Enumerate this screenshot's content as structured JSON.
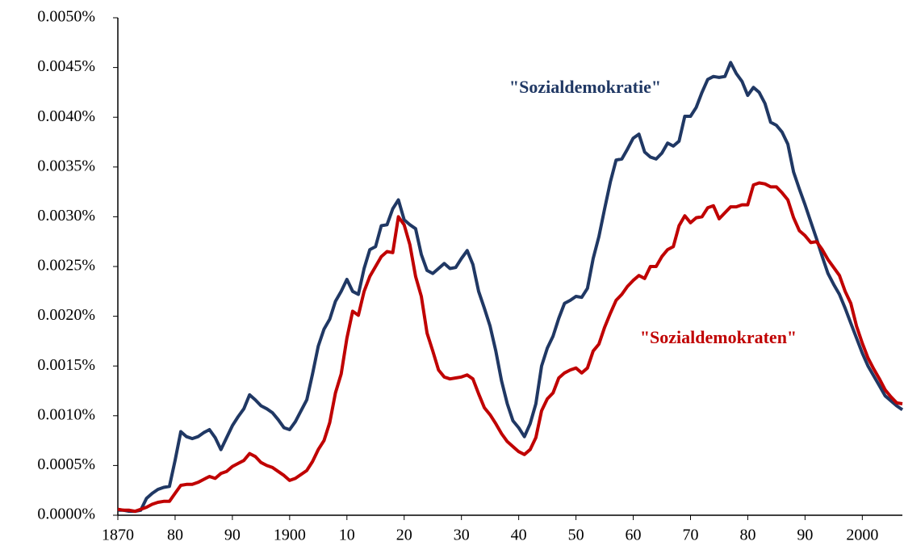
{
  "chart_data": {
    "type": "line",
    "x": [
      1870,
      1871,
      1872,
      1873,
      1874,
      1875,
      1876,
      1877,
      1878,
      1879,
      1880,
      1881,
      1882,
      1883,
      1884,
      1885,
      1886,
      1887,
      1888,
      1889,
      1890,
      1891,
      1892,
      1893,
      1894,
      1895,
      1896,
      1897,
      1898,
      1899,
      1900,
      1901,
      1902,
      1903,
      1904,
      1905,
      1906,
      1907,
      1908,
      1909,
      1910,
      1911,
      1912,
      1913,
      1914,
      1915,
      1916,
      1917,
      1918,
      1919,
      1920,
      1921,
      1922,
      1923,
      1924,
      1925,
      1926,
      1927,
      1928,
      1929,
      1930,
      1931,
      1932,
      1933,
      1934,
      1935,
      1936,
      1937,
      1938,
      1939,
      1940,
      1941,
      1942,
      1943,
      1944,
      1945,
      1946,
      1947,
      1948,
      1949,
      1950,
      1951,
      1952,
      1953,
      1954,
      1955,
      1956,
      1957,
      1958,
      1959,
      1960,
      1961,
      1962,
      1963,
      1964,
      1965,
      1966,
      1967,
      1968,
      1969,
      1970,
      1971,
      1972,
      1973,
      1974,
      1975,
      1976,
      1977,
      1978,
      1979,
      1980,
      1981,
      1982,
      1983,
      1984,
      1985,
      1986,
      1987,
      1988,
      1989,
      1990,
      1991,
      1992,
      1993,
      1994,
      1995,
      1996,
      1997,
      1998,
      1999,
      2000,
      2001,
      2002,
      2003,
      2004,
      2005,
      2006,
      2007
    ],
    "series": [
      {
        "name": "\"Sozialdemokratie\"",
        "color": "#203864",
        "values": [
          5e-05,
          5e-05,
          4e-05,
          4e-05,
          5e-05,
          0.00017,
          0.00022,
          0.00026,
          0.00028,
          0.00029,
          0.00055,
          0.00084,
          0.00079,
          0.00077,
          0.00079,
          0.00083,
          0.00086,
          0.00078,
          0.00066,
          0.00078,
          0.0009,
          0.00099,
          0.00107,
          0.00121,
          0.00116,
          0.0011,
          0.00107,
          0.00103,
          0.00096,
          0.00088,
          0.00086,
          0.00094,
          0.00105,
          0.00116,
          0.00142,
          0.0017,
          0.00187,
          0.00197,
          0.00215,
          0.00225,
          0.00237,
          0.00225,
          0.00222,
          0.00248,
          0.00267,
          0.0027,
          0.00291,
          0.00292,
          0.00308,
          0.00317,
          0.00297,
          0.00292,
          0.00288,
          0.00262,
          0.00246,
          0.00243,
          0.00248,
          0.00253,
          0.00248,
          0.00249,
          0.00258,
          0.00266,
          0.00252,
          0.00225,
          0.00208,
          0.0019,
          0.00165,
          0.00135,
          0.00112,
          0.00095,
          0.00088,
          0.00079,
          0.00092,
          0.00112,
          0.0015,
          0.00168,
          0.0018,
          0.00198,
          0.00213,
          0.00216,
          0.0022,
          0.00219,
          0.00228,
          0.00258,
          0.0028,
          0.00308,
          0.00335,
          0.00357,
          0.00358,
          0.00368,
          0.00379,
          0.00383,
          0.00365,
          0.0036,
          0.00358,
          0.00364,
          0.00374,
          0.00371,
          0.00376,
          0.00401,
          0.00401,
          0.0041,
          0.00425,
          0.00438,
          0.00441,
          0.0044,
          0.00441,
          0.00455,
          0.00444,
          0.00436,
          0.00422,
          0.0043,
          0.00425,
          0.00414,
          0.00395,
          0.00392,
          0.00385,
          0.00373,
          0.00345,
          0.00328,
          0.00312,
          0.00295,
          0.00278,
          0.0026,
          0.00243,
          0.00232,
          0.00222,
          0.00208,
          0.00193,
          0.00178,
          0.00163,
          0.0015,
          0.0014,
          0.0013,
          0.0012,
          0.00115,
          0.0011,
          0.00106
        ]
      },
      {
        "name": "\"Sozialdemokraten\"",
        "color": "#c00000",
        "values": [
          6e-05,
          5e-05,
          5e-05,
          4e-05,
          6e-05,
          8e-05,
          0.00011,
          0.00013,
          0.00014,
          0.00014,
          0.00022,
          0.0003,
          0.00031,
          0.00031,
          0.00033,
          0.00036,
          0.00039,
          0.00037,
          0.00042,
          0.00044,
          0.00049,
          0.00052,
          0.00055,
          0.00062,
          0.00059,
          0.00053,
          0.0005,
          0.00048,
          0.00044,
          0.0004,
          0.00035,
          0.00037,
          0.00041,
          0.00045,
          0.00054,
          0.00066,
          0.00075,
          0.00093,
          0.00123,
          0.00142,
          0.00178,
          0.00205,
          0.00201,
          0.00225,
          0.0024,
          0.0025,
          0.0026,
          0.00265,
          0.00264,
          0.003,
          0.00292,
          0.00272,
          0.0024,
          0.0022,
          0.00183,
          0.00165,
          0.00146,
          0.00139,
          0.00137,
          0.00138,
          0.00139,
          0.00141,
          0.00137,
          0.00122,
          0.00108,
          0.00101,
          0.00092,
          0.00082,
          0.00074,
          0.00069,
          0.00064,
          0.00061,
          0.00066,
          0.00078,
          0.00105,
          0.00117,
          0.00123,
          0.00138,
          0.00143,
          0.00146,
          0.00148,
          0.00143,
          0.00148,
          0.00165,
          0.00172,
          0.00189,
          0.00203,
          0.00216,
          0.00222,
          0.0023,
          0.00236,
          0.00241,
          0.00238,
          0.0025,
          0.0025,
          0.0026,
          0.00267,
          0.0027,
          0.00291,
          0.00301,
          0.00294,
          0.00299,
          0.003,
          0.00309,
          0.00311,
          0.00298,
          0.00304,
          0.0031,
          0.0031,
          0.00312,
          0.00312,
          0.00332,
          0.00334,
          0.00333,
          0.0033,
          0.0033,
          0.00324,
          0.00317,
          0.00299,
          0.00286,
          0.00281,
          0.00274,
          0.00275,
          0.00267,
          0.00257,
          0.00249,
          0.00241,
          0.00225,
          0.00213,
          0.0019,
          0.00173,
          0.00158,
          0.00147,
          0.00137,
          0.00126,
          0.00119,
          0.00113,
          0.00112
        ]
      }
    ],
    "xlim": [
      1870,
      2007
    ],
    "xticks": [
      1870,
      {
        "value": 1880,
        "label": "80"
      },
      {
        "value": 1890,
        "label": "90"
      },
      1900,
      {
        "value": 1910,
        "label": "10"
      },
      {
        "value": 1920,
        "label": "20"
      },
      {
        "value": 1930,
        "label": "30"
      },
      {
        "value": 1940,
        "label": "40"
      },
      {
        "value": 1950,
        "label": "50"
      },
      {
        "value": 1960,
        "label": "60"
      },
      {
        "value": 1970,
        "label": "70"
      },
      {
        "value": 1980,
        "label": "80"
      },
      {
        "value": 1990,
        "label": "90"
      },
      2000
    ],
    "ylim": [
      0,
      0.005
    ],
    "yticks": [
      {
        "value": 0,
        "label": "0.0000%"
      },
      {
        "value": 0.0005,
        "label": "0.0005%"
      },
      {
        "value": 0.001,
        "label": "0.0010%"
      },
      {
        "value": 0.0015,
        "label": "0.0015%"
      },
      {
        "value": 0.002,
        "label": "0.0020%"
      },
      {
        "value": 0.0025,
        "label": "0.0025%"
      },
      {
        "value": 0.003,
        "label": "0.0030%"
      },
      {
        "value": 0.0035,
        "label": "0.0035%"
      },
      {
        "value": 0.004,
        "label": "0.0040%"
      },
      {
        "value": 0.0045,
        "label": "0.0045%"
      },
      {
        "value": 0.005,
        "label": "0.0050%"
      }
    ]
  }
}
